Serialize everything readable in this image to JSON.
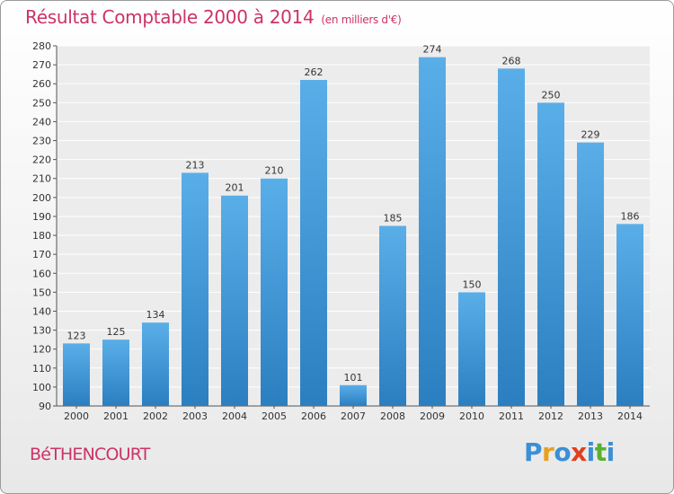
{
  "header": {
    "title": "Résultat Comptable 2000 à 2014",
    "subtitle": "(en milliers d'€)"
  },
  "footer": {
    "town": "BéTHENCOURT",
    "logo_letters": [
      "P",
      "r",
      "o",
      "x",
      "i",
      "t",
      "i"
    ]
  },
  "colors": {
    "title": "#cc3366",
    "bar_light": "#5aaee8",
    "bar_dark": "#2b7fc0",
    "logo": [
      "#3a8fd6",
      "#e8a020",
      "#3a8fd6",
      "#e04020",
      "#3a8fd6",
      "#58b030",
      "#3a8fd6"
    ]
  },
  "chart_data": {
    "type": "bar",
    "title": "Résultat Comptable 2000 à 2014",
    "subtitle": "(en milliers d'€)",
    "categories": [
      "2000",
      "2001",
      "2002",
      "2003",
      "2004",
      "2005",
      "2006",
      "2007",
      "2008",
      "2009",
      "2010",
      "2011",
      "2012",
      "2013",
      "2014"
    ],
    "values": [
      123,
      125,
      134,
      213,
      201,
      210,
      262,
      101,
      185,
      274,
      150,
      268,
      250,
      229,
      186
    ],
    "ylim": [
      90,
      280
    ],
    "ytick_step": 10,
    "grid": true,
    "xlabel": "",
    "ylabel": ""
  }
}
